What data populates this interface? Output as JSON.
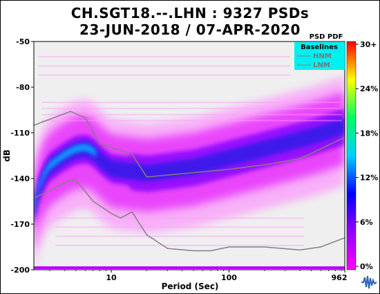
{
  "chart_data": {
    "type": "heatmap",
    "title": "CH.SGT18.--.LHN : 9327 PSDs",
    "subtitle": "23-JUN-2018 / 07-APR-2020",
    "xlabel": "Period (Sec)",
    "ylabel": "dB",
    "x_scale": "log",
    "xlim": [
      2.2,
      962
    ],
    "ylim": [
      -200,
      -50
    ],
    "x_ticks": [
      {
        "value": 10,
        "label": "10"
      },
      {
        "value": 100,
        "label": "100"
      },
      {
        "value": 962,
        "label": "962"
      }
    ],
    "y_ticks": [
      {
        "value": -50,
        "label": "-50"
      },
      {
        "value": -80,
        "label": "-80"
      },
      {
        "value": -110,
        "label": "-110"
      },
      {
        "value": -140,
        "label": "-140"
      },
      {
        "value": -170,
        "label": "-170"
      },
      {
        "value": -200,
        "label": "-200"
      }
    ],
    "colorbar": {
      "title": "PSD PDF",
      "ticks": [
        "0%",
        "6%",
        "12%",
        "18%",
        "24%",
        "30+"
      ],
      "colors": [
        "#ff00ff",
        "#9400ff",
        "#0000ff",
        "#00d0ff",
        "#00ff60",
        "#ffff00",
        "#ff0000"
      ]
    },
    "legend": {
      "title": "Baselines",
      "placement": "top-right",
      "background": "#00f0f0",
      "items": [
        "HNM",
        "LNM"
      ]
    },
    "series": [
      {
        "name": "HNM",
        "color": "#808080",
        "x": [
          2.2,
          4.5,
          6.0,
          8.0,
          15,
          20,
          100,
          200,
          400,
          962
        ],
        "y": [
          -105,
          -96,
          -100,
          -117,
          -124,
          -139,
          -134,
          -131,
          -127,
          -113
        ]
      },
      {
        "name": "LNM",
        "color": "#808080",
        "x": [
          2.2,
          4.5,
          5.0,
          7.0,
          10,
          12,
          15,
          20,
          30,
          50,
          70,
          100,
          200,
          400,
          600,
          962
        ],
        "y": [
          -153,
          -141,
          -141,
          -155,
          -163,
          -166,
          -162,
          -177,
          -186,
          -187.5,
          -187.5,
          -185,
          -185,
          -187,
          -185,
          -179
        ]
      },
      {
        "name": "",
        "role": "density ridge (mode)",
        "x": [
          2.2,
          2.5,
          3.0,
          4.0,
          5.0,
          6.0,
          7.0,
          8.0,
          10,
          20,
          50,
          100,
          200,
          500,
          962
        ],
        "y": [
          -162,
          -142,
          -132,
          -125,
          -121,
          -120,
          -122,
          -127,
          -133,
          -136,
          -132,
          -126,
          -120,
          -112,
          -105
        ]
      }
    ]
  }
}
